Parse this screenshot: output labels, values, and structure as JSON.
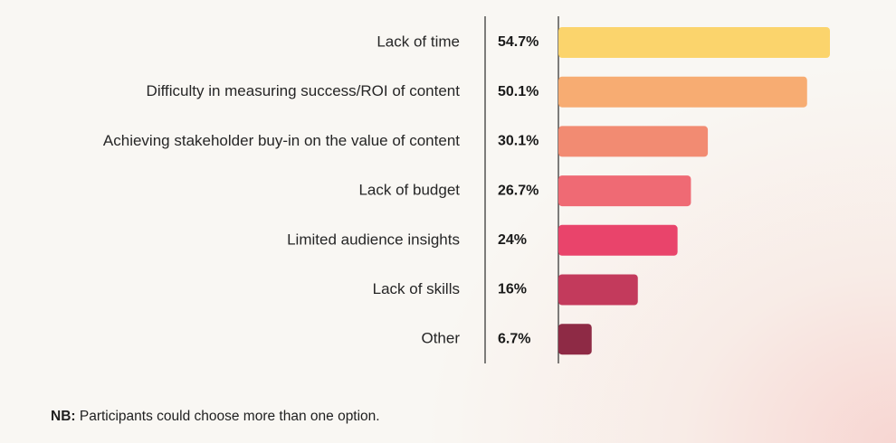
{
  "chart_data": {
    "type": "bar",
    "orientation": "horizontal",
    "title": "",
    "xlabel": "",
    "ylabel": "",
    "xlim": [
      0,
      60
    ],
    "grid": false,
    "categories": [
      "Lack of time",
      "Difficulty in measuring success/ROI of content",
      "Achieving stakeholder buy-in on the value of content",
      "Lack of budget",
      "Limited audience insights",
      "Lack of skills",
      "Other"
    ],
    "values": [
      54.7,
      50.1,
      30.1,
      26.7,
      24,
      16,
      6.7
    ],
    "value_labels": [
      "54.7%",
      "50.1%",
      "30.1%",
      "26.7%",
      "24%",
      "16%",
      "6.7%"
    ],
    "colors": [
      "#fbd46c",
      "#f7ac72",
      "#f28b72",
      "#ef6a74",
      "#e9446b",
      "#c33a5c",
      "#8e2a45"
    ]
  },
  "footnote": {
    "prefix": "NB:",
    "text": " Participants could choose more than one option."
  }
}
